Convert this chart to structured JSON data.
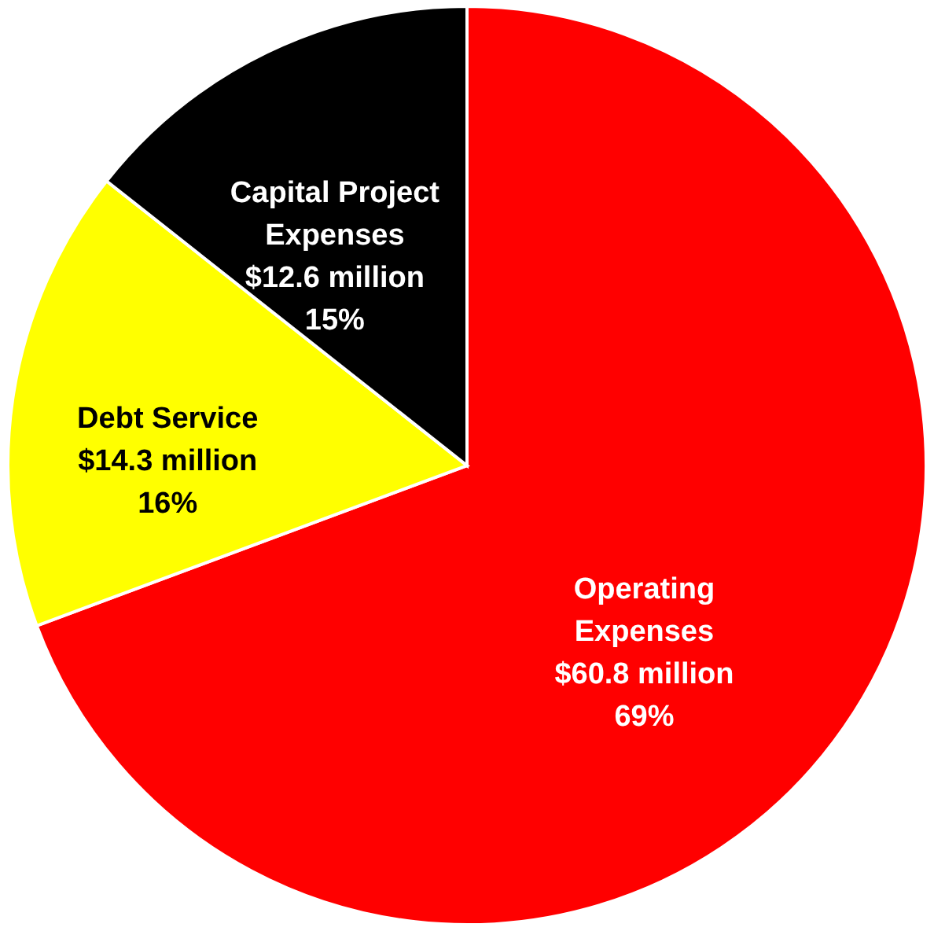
{
  "chart_data": {
    "type": "pie",
    "categories": [
      "Operating Expenses",
      "Debt Service",
      "Capital Project Expenses"
    ],
    "values": [
      60.8,
      14.3,
      12.6
    ],
    "colors": [
      "#ff0000",
      "#ffff00",
      "#000000"
    ],
    "value_labels": [
      "$60.8 million",
      "$14.3 million",
      "$12.6 million"
    ],
    "annotations": [
      "69%",
      "16%",
      "15%"
    ],
    "legend": false
  }
}
